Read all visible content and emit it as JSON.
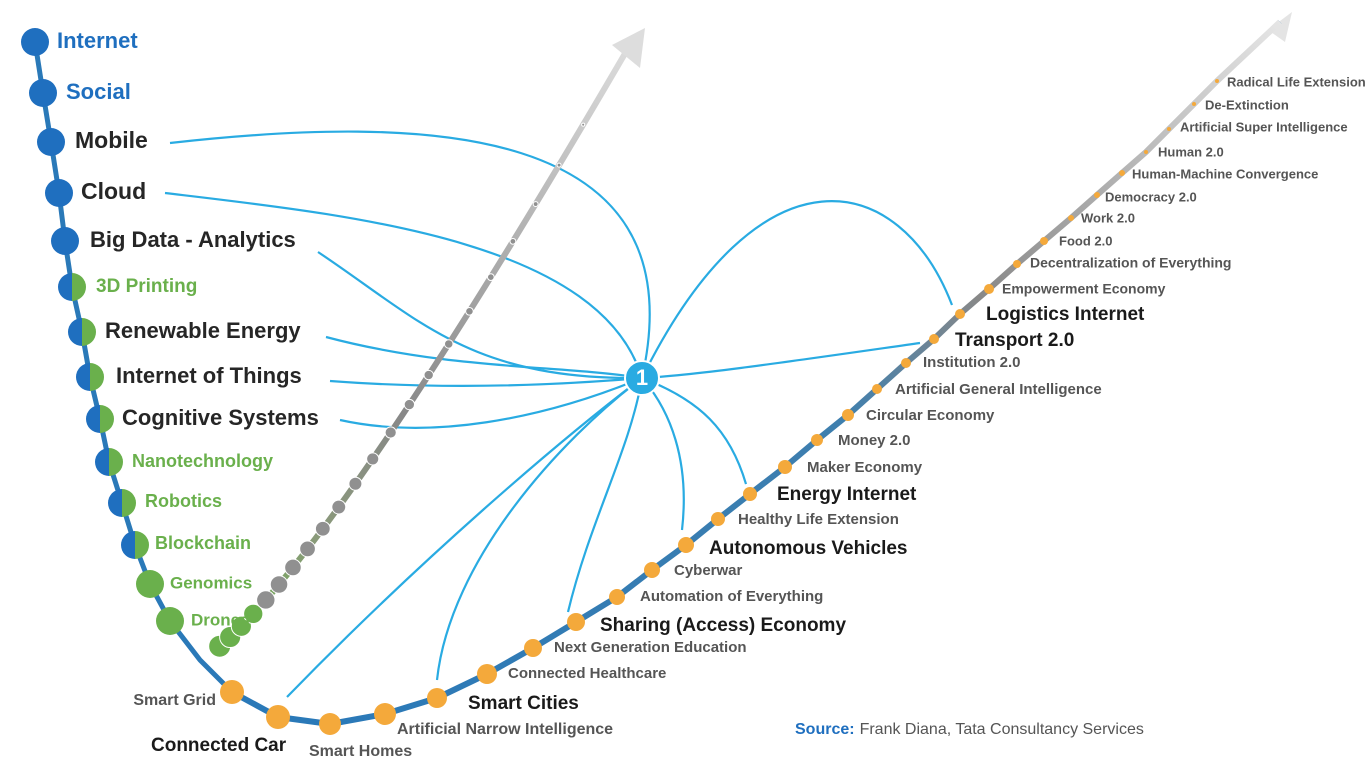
{
  "hub": {
    "label": "1"
  },
  "left_items": [
    {
      "label": "Internet"
    },
    {
      "label": "Social"
    },
    {
      "label": "Mobile"
    },
    {
      "label": "Cloud"
    },
    {
      "label": "Big Data - Analytics"
    },
    {
      "label": "3D Printing"
    },
    {
      "label": "Renewable Energy"
    },
    {
      "label": "Internet of Things"
    },
    {
      "label": "Cognitive Systems"
    },
    {
      "label": "Nanotechnology"
    },
    {
      "label": "Robotics"
    },
    {
      "label": "Blockchain"
    },
    {
      "label": "Genomics"
    },
    {
      "label": "Drones"
    }
  ],
  "right_items": [
    {
      "label": "Smart Grid"
    },
    {
      "label": "Connected Car"
    },
    {
      "label": "Smart Homes"
    },
    {
      "label": "Artificial Narrow Intelligence"
    },
    {
      "label": "Smart Cities"
    },
    {
      "label": "Connected Healthcare"
    },
    {
      "label": "Next Generation  Education"
    },
    {
      "label": "Sharing (Access) Economy"
    },
    {
      "label": "Automation of Everything"
    },
    {
      "label": "Cyberwar"
    },
    {
      "label": "Autonomous  Vehicles"
    },
    {
      "label": "Healthy Life Extension"
    },
    {
      "label": "Energy Internet"
    },
    {
      "label": "Maker Economy"
    },
    {
      "label": "Money 2.0"
    },
    {
      "label": "Circular Economy"
    },
    {
      "label": "Artificial General Intelligence"
    },
    {
      "label": "Institution 2.0"
    },
    {
      "label": "Transport  2.0"
    },
    {
      "label": "Logistics Internet"
    },
    {
      "label": "Empowerment Economy"
    },
    {
      "label": "Decentralization of Everything"
    },
    {
      "label": "Food 2.0"
    },
    {
      "label": "Work 2.0"
    },
    {
      "label": "Democracy 2.0"
    },
    {
      "label": "Human-Machine Convergence"
    },
    {
      "label": "Human 2.0"
    },
    {
      "label": "Artificial Super Intelligence"
    },
    {
      "label": "De-Extinction"
    },
    {
      "label": "Radical Life Extension"
    }
  ],
  "source": {
    "prefix": "Source:",
    "text": "Frank Diana, Tata Consultancy Services"
  }
}
